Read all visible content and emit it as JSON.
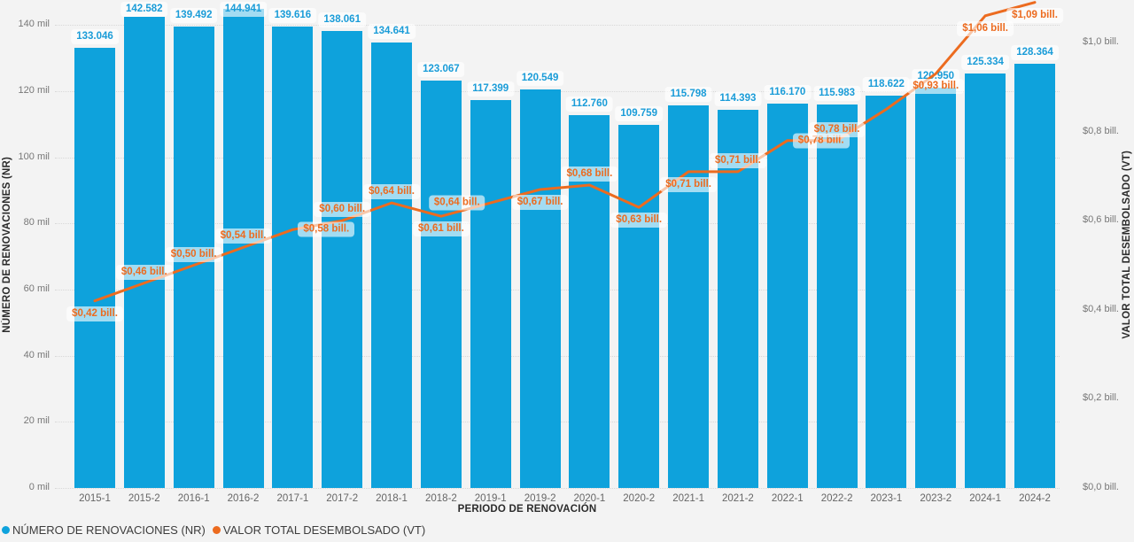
{
  "chart_data": {
    "type": "combo-bar-line",
    "categories": [
      "2015-1",
      "2015-2",
      "2016-1",
      "2016-2",
      "2017-1",
      "2017-2",
      "2018-1",
      "2018-2",
      "2019-1",
      "2019-2",
      "2020-1",
      "2020-2",
      "2021-1",
      "2021-2",
      "2022-1",
      "2022-2",
      "2023-1",
      "2023-2",
      "2024-1",
      "2024-2"
    ],
    "series": [
      {
        "name": "NÚMERO DE RENOVACIONES (NR)",
        "type": "bar",
        "color": "#0ea2dc",
        "label_color": "#1a9cd8",
        "values": [
          133046,
          142582,
          139492,
          144941,
          139616,
          138061,
          134641,
          123067,
          117399,
          120549,
          112760,
          109759,
          115798,
          114393,
          116170,
          115983,
          118622,
          120950,
          125334,
          128364
        ],
        "labels": [
          "133.046",
          "142.582",
          "139.492",
          "144.941",
          "139.616",
          "138.061",
          "134.641",
          "123.067",
          "117.399",
          "120.549",
          "112.760",
          "109.759",
          "115.798",
          "114.393",
          "116.170",
          "115.983",
          "118.622",
          "120.950",
          "125.334",
          "128.364"
        ]
      },
      {
        "name": "VALOR TOTAL DESEMBOLSADO (VT)",
        "type": "line",
        "color": "#ec6b1f",
        "label_color": "#ec6b1f",
        "values": [
          0.42,
          0.46,
          0.5,
          0.54,
          0.58,
          0.6,
          0.64,
          0.61,
          0.64,
          0.67,
          0.68,
          0.63,
          0.71,
          0.71,
          0.78,
          0.78,
          0.85,
          0.93,
          1.06,
          1.09
        ],
        "labels": [
          "$0,42 bill.",
          "$0,46 bill.",
          "$0,50 bill.",
          "$0,54 bill.",
          "$0,58 bill.",
          "$0,60 bill.",
          "$0,64 bill.",
          "$0,61 bill.",
          "$0,64 bill.",
          "$0,67 bill.",
          "$0,68 bill.",
          "$0,63 bill.",
          "$0,71 bill.",
          "$0,71 bill.",
          "$0,78 bill.",
          "$0,78 bill.",
          null,
          "$0,93 bill.",
          "$1,06 bill.",
          "$1,09 bill."
        ],
        "label_positions": [
          "below",
          "above",
          "above",
          "above",
          "right",
          "above",
          "above",
          "below",
          "left",
          "below",
          "above",
          "below",
          "below",
          "above",
          "right",
          "above",
          "above",
          "below",
          "below",
          "below"
        ]
      }
    ],
    "y_left": {
      "title": "NÚMERO DE RENOVACIONES (NR)",
      "ticks": [
        "0 mil",
        "20 mil",
        "40 mil",
        "60 mil",
        "80 mil",
        "100 mil",
        "120 mil",
        "140 mil"
      ],
      "tick_values": [
        0,
        20000,
        40000,
        60000,
        80000,
        100000,
        120000,
        140000
      ],
      "range": [
        0,
        148000
      ],
      "grid": true
    },
    "y_right": {
      "title": "VALOR TOTAL DESEMBOLSADO (VT)",
      "ticks": [
        "$0,0 bill.",
        "$0,2 bill.",
        "$0,4 bill.",
        "$0,6 bill.",
        "$0,8 bill.",
        "$1,0 bill."
      ],
      "tick_values": [
        0,
        0.2,
        0.4,
        0.6,
        0.8,
        1.0
      ],
      "range": [
        0,
        1.1
      ],
      "grid": false
    },
    "x": {
      "title": "PERIODO DE RENOVACIÓN"
    },
    "legend": {
      "position": "bottom-left",
      "items": [
        {
          "label": "NÚMERO DE RENOVACIONES (NR)",
          "color": "#0ea2dc"
        },
        {
          "label": "VALOR TOTAL DESEMBOLSADO (VT)",
          "color": "#ec6b1f"
        }
      ]
    }
  }
}
